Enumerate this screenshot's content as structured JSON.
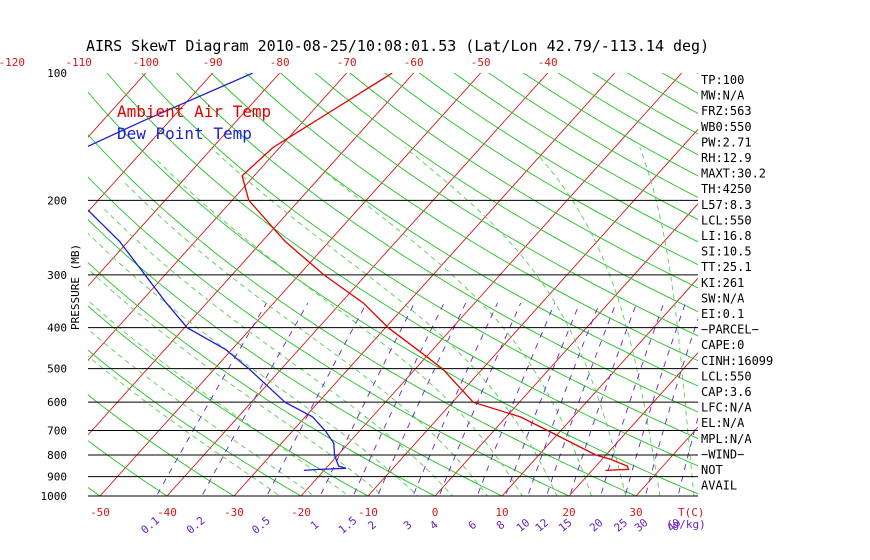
{
  "chart_data": {
    "type": "line",
    "title": "AIRS SkewT Diagram 2010-08-25/10:08:01.53 (Lat/Lon 42.79/-113.14 deg)",
    "ylabel": "PRESSURE (MB)",
    "x_unit_label": "T(C)",
    "mixing_ratio_unit_label": "(g/kg)",
    "y_ticks": [
      "100",
      "200",
      "300",
      "400",
      "500",
      "600",
      "700",
      "800",
      "900",
      "1000"
    ],
    "top_ticks": [
      "-120",
      "-110",
      "-100",
      "-90",
      "-80",
      "-70",
      "-60",
      "-50",
      "-40"
    ],
    "bottom_ticks": [
      "-50",
      "-40",
      "-30",
      "-20",
      "-10",
      "0",
      "10",
      "20",
      "30"
    ],
    "mixing_ratio_labels": [
      "0.1",
      "0.2",
      "0.5",
      "1",
      "1.5",
      "2",
      "3",
      "4",
      "6",
      "8",
      "10",
      "12",
      "15",
      "20",
      "25",
      "30",
      "40"
    ],
    "legend": [
      {
        "name": "Ambient Air Temp",
        "color": "#e00000"
      },
      {
        "name": "Dew Point Temp",
        "color": "#1f1fd0"
      }
    ],
    "series": [
      {
        "name": "Ambient Air Temp",
        "color": "#e00000",
        "points": [
          {
            "p": 100,
            "t": -63.2
          },
          {
            "p": 120,
            "t": -66.7
          },
          {
            "p": 150,
            "t": -71.0
          },
          {
            "p": 175,
            "t": -71.8
          },
          {
            "p": 200,
            "t": -67.5
          },
          {
            "p": 250,
            "t": -56.6
          },
          {
            "p": 300,
            "t": -46.3
          },
          {
            "p": 350,
            "t": -36.6
          },
          {
            "p": 400,
            "t": -29.6
          },
          {
            "p": 450,
            "t": -22.4
          },
          {
            "p": 500,
            "t": -16.0
          },
          {
            "p": 600,
            "t": -6.9
          },
          {
            "p": 650,
            "t": 2.1
          },
          {
            "p": 700,
            "t": 8.0
          },
          {
            "p": 800,
            "t": 18.5
          },
          {
            "p": 820,
            "t": 21.4
          },
          {
            "p": 850,
            "t": 24.7
          },
          {
            "p": 865,
            "t": 25.3
          },
          {
            "p": 870,
            "t": 22.0
          }
        ]
      },
      {
        "name": "Dew Point Temp",
        "color": "#1f1fd0",
        "points": [
          {
            "p": 100,
            "t": -84.0
          },
          {
            "p": 130,
            "t": -94.0
          },
          {
            "p": 150,
            "t": -99.0
          },
          {
            "p": 175,
            "t": -95.3
          },
          {
            "p": 200,
            "t": -93.0
          },
          {
            "p": 250,
            "t": -81.3
          },
          {
            "p": 300,
            "t": -73.0
          },
          {
            "p": 350,
            "t": -66.0
          },
          {
            "p": 400,
            "t": -59.6
          },
          {
            "p": 450,
            "t": -51.0
          },
          {
            "p": 500,
            "t": -44.9
          },
          {
            "p": 600,
            "t": -35.0
          },
          {
            "p": 650,
            "t": -28.9
          },
          {
            "p": 700,
            "t": -25.2
          },
          {
            "p": 750,
            "t": -22.2
          },
          {
            "p": 800,
            "t": -20.5
          },
          {
            "p": 850,
            "t": -18.4
          },
          {
            "p": 860,
            "t": -17.0
          },
          {
            "p": 865,
            "t": -21.0
          },
          {
            "p": 870,
            "t": -23.0
          }
        ]
      }
    ],
    "grid": true,
    "legend_placement": "top-left"
  },
  "indices": [
    "TP:100",
    "MW:N/A",
    "FRZ:563",
    "WB0:550",
    "PW:2.71",
    "RH:12.9",
    "MAXT:30.2",
    "TH:4250",
    "L57:8.3",
    "LCL:550",
    "LI:16.8",
    "SI:10.5",
    "TT:25.1",
    "KI:261",
    "SW:N/A",
    "EI:0.1",
    "−PARCEL−",
    "CAPE:0",
    "CINH:16099",
    "LCL:550",
    "CAP:3.6",
    "LFC:N/A",
    "EL:N/A",
    "MPL:N/A",
    "−WIND−",
    "NOT",
    "AVAIL"
  ],
  "colors": {
    "isotherm": "#d01818",
    "dry_adiabat": "#22c222",
    "moist_adiabat": "#55cc55",
    "mixing_ratio": "#6a22c2",
    "isobar": "#000000",
    "top_ticks": "#d01818",
    "bottom_ticks": "#d01818",
    "mixing_labels": "#6a22c2"
  }
}
